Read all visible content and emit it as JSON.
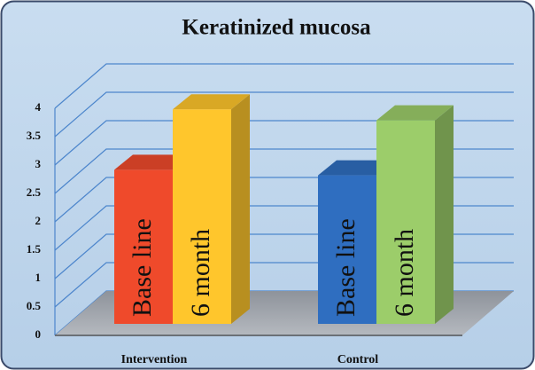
{
  "chart_data": {
    "type": "bar3d",
    "title": "Keratinized mucosa",
    "categories": [
      "Intervention",
      "Control"
    ],
    "series": [
      {
        "name": "Base line",
        "colors": [
          "#ef4a2b",
          "#2f6ec0"
        ],
        "values": [
          2.8,
          2.7
        ]
      },
      {
        "name": "6 month",
        "colors": [
          "#ffc62c",
          "#9ccd6a"
        ],
        "values": [
          3.9,
          3.7
        ]
      }
    ],
    "ylim": [
      0,
      4
    ],
    "yticks": [
      0,
      0.5,
      1,
      1.5,
      2,
      2.5,
      3,
      3.5,
      4
    ],
    "grid": true
  }
}
